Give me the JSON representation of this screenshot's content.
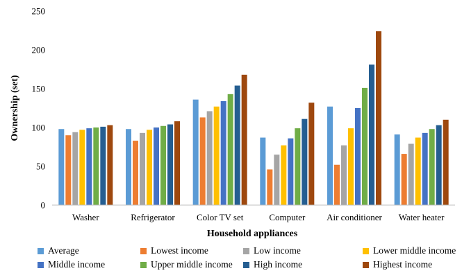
{
  "chart_data": {
    "type": "bar",
    "categories": [
      "Washer",
      "Refrigerator",
      "Color TV set",
      "Computer",
      "Air conditioner",
      "Water heater"
    ],
    "series": [
      {
        "name": "Average",
        "color": "#5B9BD5",
        "values": [
          98,
          98,
          136,
          87,
          127,
          91
        ]
      },
      {
        "name": "Lowest income",
        "color": "#ED7D31",
        "values": [
          90,
          83,
          113,
          46,
          52,
          66
        ]
      },
      {
        "name": "Low income",
        "color": "#A5A5A5",
        "values": [
          94,
          93,
          121,
          65,
          77,
          79
        ]
      },
      {
        "name": "Lower middle income",
        "color": "#FFC000",
        "values": [
          97,
          97,
          127,
          77,
          99,
          87
        ]
      },
      {
        "name": "Middle income",
        "color": "#4472C4",
        "values": [
          99,
          100,
          134,
          86,
          125,
          93
        ]
      },
      {
        "name": "Upper middle income",
        "color": "#70AD47",
        "values": [
          100,
          102,
          143,
          99,
          151,
          98
        ]
      },
      {
        "name": "High income",
        "color": "#255E91",
        "values": [
          101,
          104,
          154,
          111,
          181,
          103
        ]
      },
      {
        "name": "Highest income",
        "color": "#9E480E",
        "values": [
          103,
          108,
          168,
          132,
          224,
          110
        ]
      }
    ],
    "xlabel": "Household appliances",
    "ylabel": "Ownership (set)",
    "ylim": [
      0,
      250
    ],
    "yticks": [
      0,
      50,
      100,
      150,
      200,
      250
    ],
    "grid": false,
    "legend_position": "bottom"
  }
}
